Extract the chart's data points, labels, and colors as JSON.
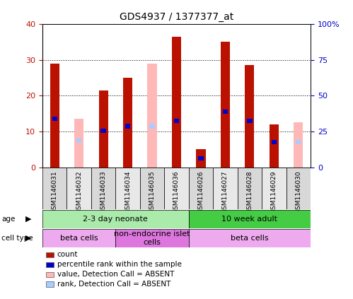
{
  "title": "GDS4937 / 1377377_at",
  "samples": [
    "GSM1146031",
    "GSM1146032",
    "GSM1146033",
    "GSM1146034",
    "GSM1146035",
    "GSM1146036",
    "GSM1146026",
    "GSM1146027",
    "GSM1146028",
    "GSM1146029",
    "GSM1146030"
  ],
  "count_values": [
    29,
    0,
    21.5,
    25,
    0,
    36.5,
    5,
    35,
    28.5,
    12,
    0
  ],
  "absent_values": [
    0,
    13.5,
    0,
    0,
    29,
    0,
    0,
    0,
    0,
    0,
    12.5
  ],
  "percentile_rank": [
    13.5,
    0,
    10.3,
    11.5,
    0,
    13,
    2.5,
    15.5,
    13,
    7,
    0
  ],
  "absent_rank": [
    0,
    7.5,
    0,
    0,
    11.5,
    0,
    0,
    0,
    0,
    0,
    7
  ],
  "count_color": "#bb1100",
  "absent_count_color": "#ffb8b8",
  "rank_color": "#0000cc",
  "absent_rank_color": "#aaccff",
  "ylim_left": [
    0,
    40
  ],
  "ylim_right": [
    0,
    100
  ],
  "yticks_left": [
    0,
    10,
    20,
    30,
    40
  ],
  "yticks_right": [
    0,
    25,
    50,
    75,
    100
  ],
  "ytick_right_labels": [
    "0",
    "25",
    "50",
    "75",
    "100%"
  ],
  "age_groups": [
    {
      "label": "2-3 day neonate",
      "start": 0,
      "end": 6,
      "color": "#aaeaaa"
    },
    {
      "label": "10 week adult",
      "start": 6,
      "end": 11,
      "color": "#44cc44"
    }
  ],
  "cell_type_groups": [
    {
      "label": "beta cells",
      "start": 0,
      "end": 3,
      "color": "#eeaaee"
    },
    {
      "label": "non-endocrine islet\ncells",
      "start": 3,
      "end": 6,
      "color": "#dd77dd"
    },
    {
      "label": "beta cells",
      "start": 6,
      "end": 11,
      "color": "#eeaaee"
    }
  ],
  "legend_items": [
    {
      "label": "count",
      "color": "#bb1100"
    },
    {
      "label": "percentile rank within the sample",
      "color": "#0000cc"
    },
    {
      "label": "value, Detection Call = ABSENT",
      "color": "#ffb8b8"
    },
    {
      "label": "rank, Detection Call = ABSENT",
      "color": "#aaccff"
    }
  ],
  "bar_width": 0.38,
  "title_fontsize": 10,
  "tick_label_fontsize": 6.5,
  "annot_fontsize": 8,
  "legend_fontsize": 7.5
}
